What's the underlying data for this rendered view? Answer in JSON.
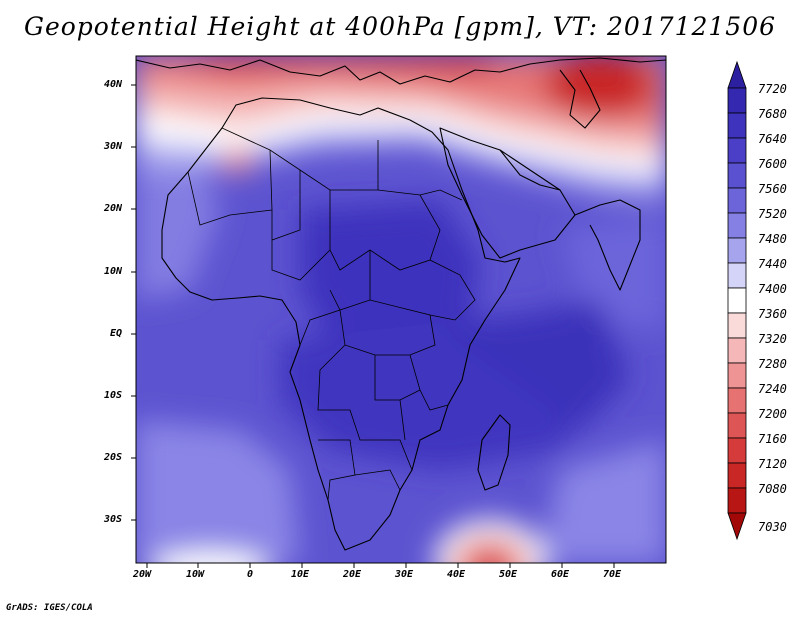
{
  "title": "Geopotential Height at 400hPa [gpm], VT: 2017121506",
  "credit": "GrADS: IGES/COLA",
  "map": {
    "lon_labels": [
      "20W",
      "10W",
      "0",
      "10E",
      "20E",
      "30E",
      "40E",
      "50E",
      "60E",
      "70E"
    ],
    "lat_labels": [
      "40N",
      "30N",
      "20N",
      "10N",
      "EQ",
      "10S",
      "20S",
      "30S"
    ],
    "lon_range": [
      -22,
      80
    ],
    "lat_range": [
      -37,
      45
    ]
  },
  "colorbar": {
    "labels": [
      "7720",
      "7680",
      "7640",
      "7600",
      "7560",
      "7520",
      "7480",
      "7440",
      "7400",
      "7360",
      "7320",
      "7280",
      "7240",
      "7200",
      "7160",
      "7120",
      "7080",
      "7030"
    ],
    "colors": [
      "#2c1fa0",
      "#3428b0",
      "#3d33bd",
      "#4a3fc6",
      "#5a51d0",
      "#6c65da",
      "#8580e4",
      "#a7a4ee",
      "#d4d3f8",
      "#ffffff",
      "#fbdada",
      "#f5b7b7",
      "#ee9494",
      "#e67272",
      "#de5555",
      "#d53b3b",
      "#c92626",
      "#b81515",
      "#a30808"
    ]
  }
}
